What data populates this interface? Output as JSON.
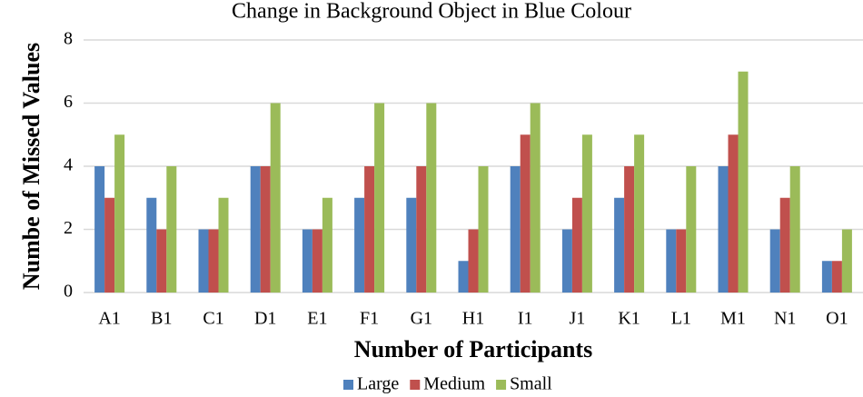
{
  "chart_data": {
    "type": "bar",
    "title": "Change in Background Object in Blue Colour",
    "x_label": "Number of Participants",
    "y_label": "Numbe of Missed Values",
    "categories": [
      "A1",
      "B1",
      "C1",
      "D1",
      "E1",
      "F1",
      "G1",
      "H1",
      "I1",
      "J1",
      "K1",
      "L1",
      "M1",
      "N1",
      "O1"
    ],
    "series": [
      {
        "name": "Large",
        "color": "#4f81bd",
        "values": [
          4,
          3,
          2,
          4,
          2,
          3,
          3,
          1,
          4,
          2,
          3,
          2,
          4,
          2,
          1
        ]
      },
      {
        "name": "Medium",
        "color": "#c0504d",
        "values": [
          3,
          2,
          2,
          4,
          2,
          4,
          4,
          2,
          5,
          3,
          4,
          2,
          5,
          3,
          1
        ]
      },
      {
        "name": "Small",
        "color": "#9bbb59",
        "values": [
          5,
          4,
          3,
          6,
          3,
          6,
          6,
          4,
          6,
          5,
          5,
          4,
          7,
          4,
          2
        ]
      }
    ],
    "ylim": [
      0,
      8
    ],
    "yticks": [
      0,
      2,
      4,
      6,
      8
    ],
    "grid": true,
    "legend": "bottom"
  }
}
